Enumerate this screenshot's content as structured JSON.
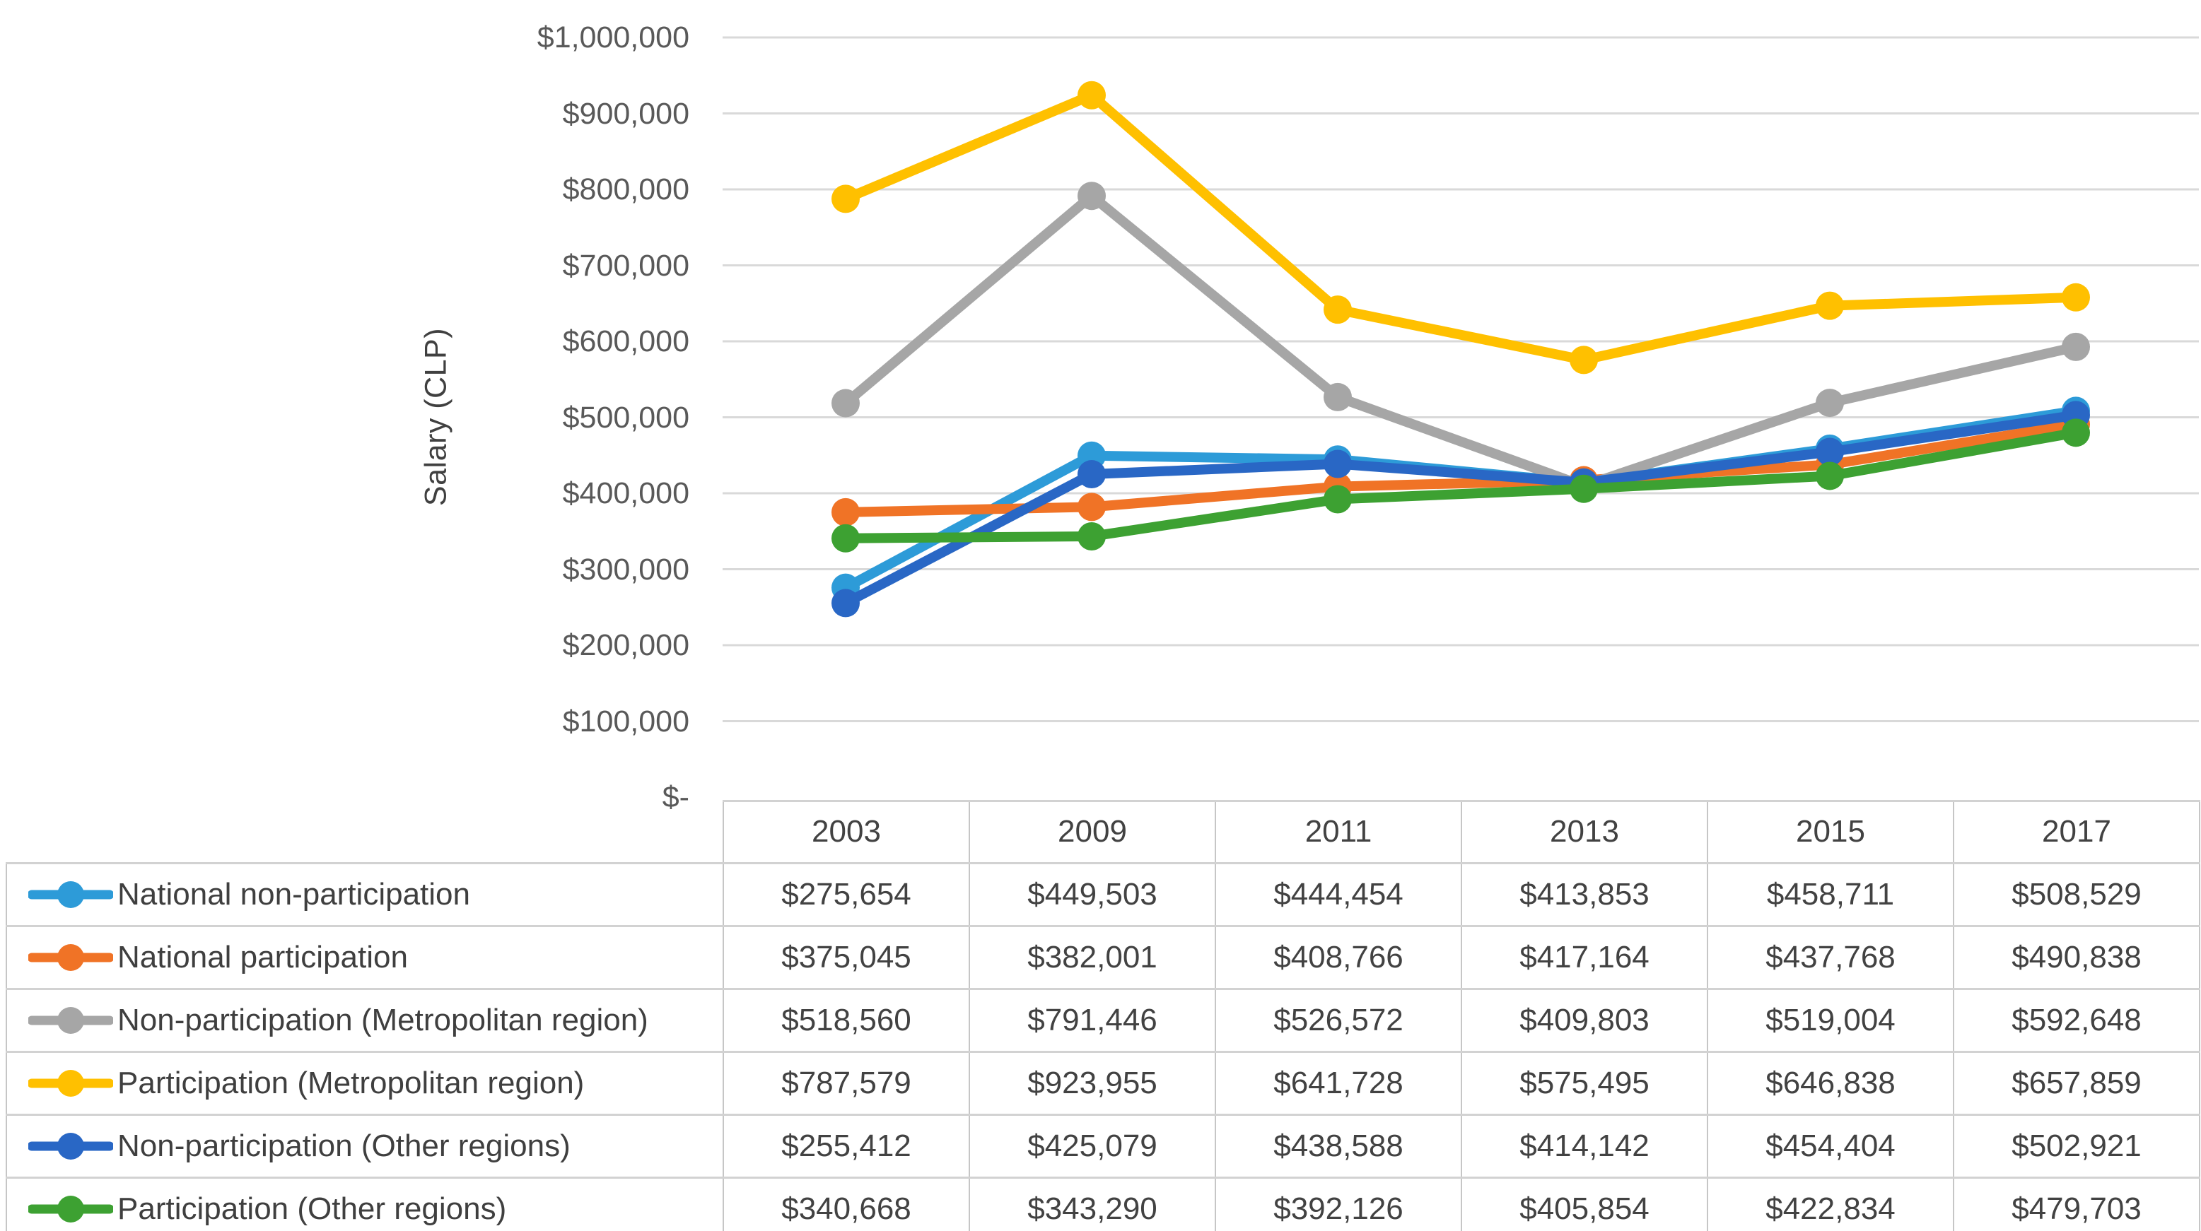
{
  "chart_data": {
    "type": "line",
    "title": "",
    "xlabel": "",
    "ylabel": "Salary (CLP)",
    "categories": [
      "2003",
      "2009",
      "2011",
      "2013",
      "2015",
      "2017"
    ],
    "y_axis": {
      "min": 0,
      "max": 1000000,
      "step": 100000,
      "tick_labels": [
        "$-",
        "$100,000",
        "$200,000",
        "$300,000",
        "$400,000",
        "$500,000",
        "$600,000",
        "$700,000",
        "$800,000",
        "$900,000",
        "$1,000,000"
      ]
    },
    "grid": true,
    "gridline_color": "#d9d9d9",
    "axis_text_color": "#595959",
    "legend_position": "table-left-column",
    "marker": "circle",
    "series": [
      {
        "name": "National non-participation",
        "color": "#2d9bd8",
        "values": [
          275654,
          449503,
          444454,
          413853,
          458711,
          508529
        ]
      },
      {
        "name": "National participation",
        "color": "#f07326",
        "values": [
          375045,
          382001,
          408766,
          417164,
          437768,
          490838
        ]
      },
      {
        "name": "Non-participation (Metropolitan region)",
        "color": "#a6a6a6",
        "values": [
          518560,
          791446,
          526572,
          409803,
          519004,
          592648
        ]
      },
      {
        "name": "Participation (Metropolitan region)",
        "color": "#ffc000",
        "values": [
          787579,
          923955,
          641728,
          575495,
          646838,
          657859
        ]
      },
      {
        "name": "Non-participation (Other regions)",
        "color": "#2967c5",
        "values": [
          255412,
          425079,
          438588,
          414142,
          454404,
          502921
        ]
      },
      {
        "name": "Participation (Other regions)",
        "color": "#3da132",
        "values": [
          340668,
          343290,
          392126,
          405854,
          422834,
          479703
        ]
      }
    ]
  },
  "table": {
    "corner_label": "",
    "year_headers": [
      "2003",
      "2009",
      "2011",
      "2013",
      "2015",
      "2017"
    ],
    "rows": [
      {
        "label": "National non-participation",
        "color": "#2d9bd8",
        "values": [
          "$275,654",
          "$449,503",
          "$444,454",
          "$413,853",
          "$458,711",
          "$508,529"
        ]
      },
      {
        "label": "National participation",
        "color": "#f07326",
        "values": [
          "$375,045",
          "$382,001",
          "$408,766",
          "$417,164",
          "$437,768",
          "$490,838"
        ]
      },
      {
        "label": "Non-participation (Metropolitan region)",
        "color": "#a6a6a6",
        "values": [
          "$518,560",
          "$791,446",
          "$526,572",
          "$409,803",
          "$519,004",
          "$592,648"
        ]
      },
      {
        "label": "Participation (Metropolitan region)",
        "color": "#ffc000",
        "values": [
          "$787,579",
          "$923,955",
          "$641,728",
          "$575,495",
          "$646,838",
          "$657,859"
        ]
      },
      {
        "label": "Non-participation (Other regions)",
        "color": "#2967c5",
        "values": [
          "$255,412",
          "$425,079",
          "$438,588",
          "$414,142",
          "$454,404",
          "$502,921"
        ]
      },
      {
        "label": "Participation (Other regions)",
        "color": "#3da132",
        "values": [
          "$340,668",
          "$343,290",
          "$392,126",
          "$405,854",
          "$422,834",
          "$479,703"
        ]
      }
    ],
    "border_color": "#c6c6c6",
    "text_color": "#424242"
  }
}
